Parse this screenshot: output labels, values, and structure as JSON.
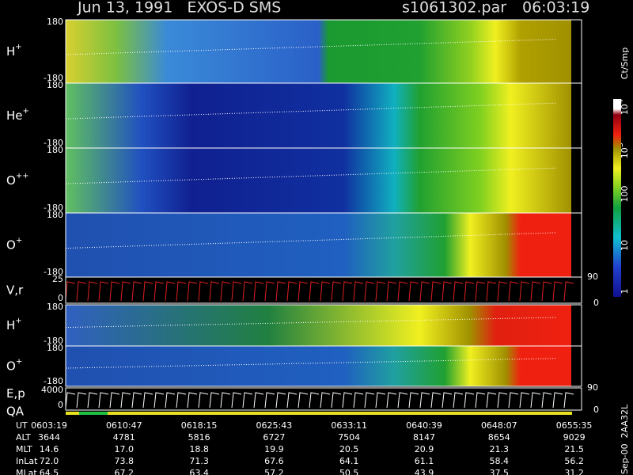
{
  "header": {
    "title": "Jun 13, 1991   EXOS-D SMS",
    "file": "s1061302.par",
    "time": "06:03:19"
  },
  "panels": [
    {
      "label": {
        "base": "H",
        "sup": "+"
      },
      "top": "180",
      "bottom": "-180"
    },
    {
      "label": {
        "base": "He",
        "sup": "+"
      },
      "top": "180",
      "bottom": "-180"
    },
    {
      "label": {
        "base": "O",
        "sup": "++"
      },
      "top": "180",
      "bottom": "-180"
    },
    {
      "label": {
        "base": "O",
        "sup": "+"
      },
      "top": "180",
      "bottom": "-180"
    },
    {
      "label": {
        "base": "V,r",
        "sup": ""
      },
      "top": "25",
      "bottom": "0",
      "right_top": "90",
      "right_bottom": "0"
    },
    {
      "label": {
        "base": "H",
        "sup": "+"
      },
      "top": "180",
      "bottom": "-180"
    },
    {
      "label": {
        "base": "O",
        "sup": "+"
      },
      "top": "180",
      "bottom": "-180"
    },
    {
      "label": {
        "base": "E,p",
        "sup": ""
      },
      "label2": "QA",
      "top": "4000",
      "bottom": "0",
      "right_top": "90",
      "right_bottom": "0"
    }
  ],
  "colorbar": {
    "unit": "Ct/Smp",
    "labels": [
      {
        "base": "1",
        "sup": ""
      },
      {
        "base": "10",
        "sup": ""
      },
      {
        "base": "100",
        "sup": ""
      },
      {
        "base": "10",
        "sup": "3"
      },
      {
        "base": "10",
        "sup": "4"
      }
    ]
  },
  "ephemeris": {
    "rows": [
      {
        "name": "UT",
        "values": [
          "0603:19",
          "0610:47",
          "0618:15",
          "0625:43",
          "0633:11",
          "0640:39",
          "0648:07",
          "0655:35"
        ]
      },
      {
        "name": "ALT",
        "values": [
          "3644",
          "4781",
          "5816",
          "6727",
          "7504",
          "8147",
          "8654",
          "9029"
        ]
      },
      {
        "name": "MLT",
        "values": [
          "14.6",
          "17.0",
          "18.8",
          "19.9",
          "20.5",
          "20.9",
          "21.3",
          "21.5"
        ]
      },
      {
        "name": "InLat",
        "values": [
          "72.0",
          "73.8",
          "71.3",
          "67.6",
          "64.1",
          "61.1",
          "58.4",
          "56.2"
        ]
      },
      {
        "name": "MLat",
        "values": [
          "64.5",
          "67.2",
          "63.4",
          "57.2",
          "50.5",
          "43.9",
          "37.5",
          "31.2"
        ]
      }
    ]
  },
  "footer": "Sep-00  2AA32L"
}
